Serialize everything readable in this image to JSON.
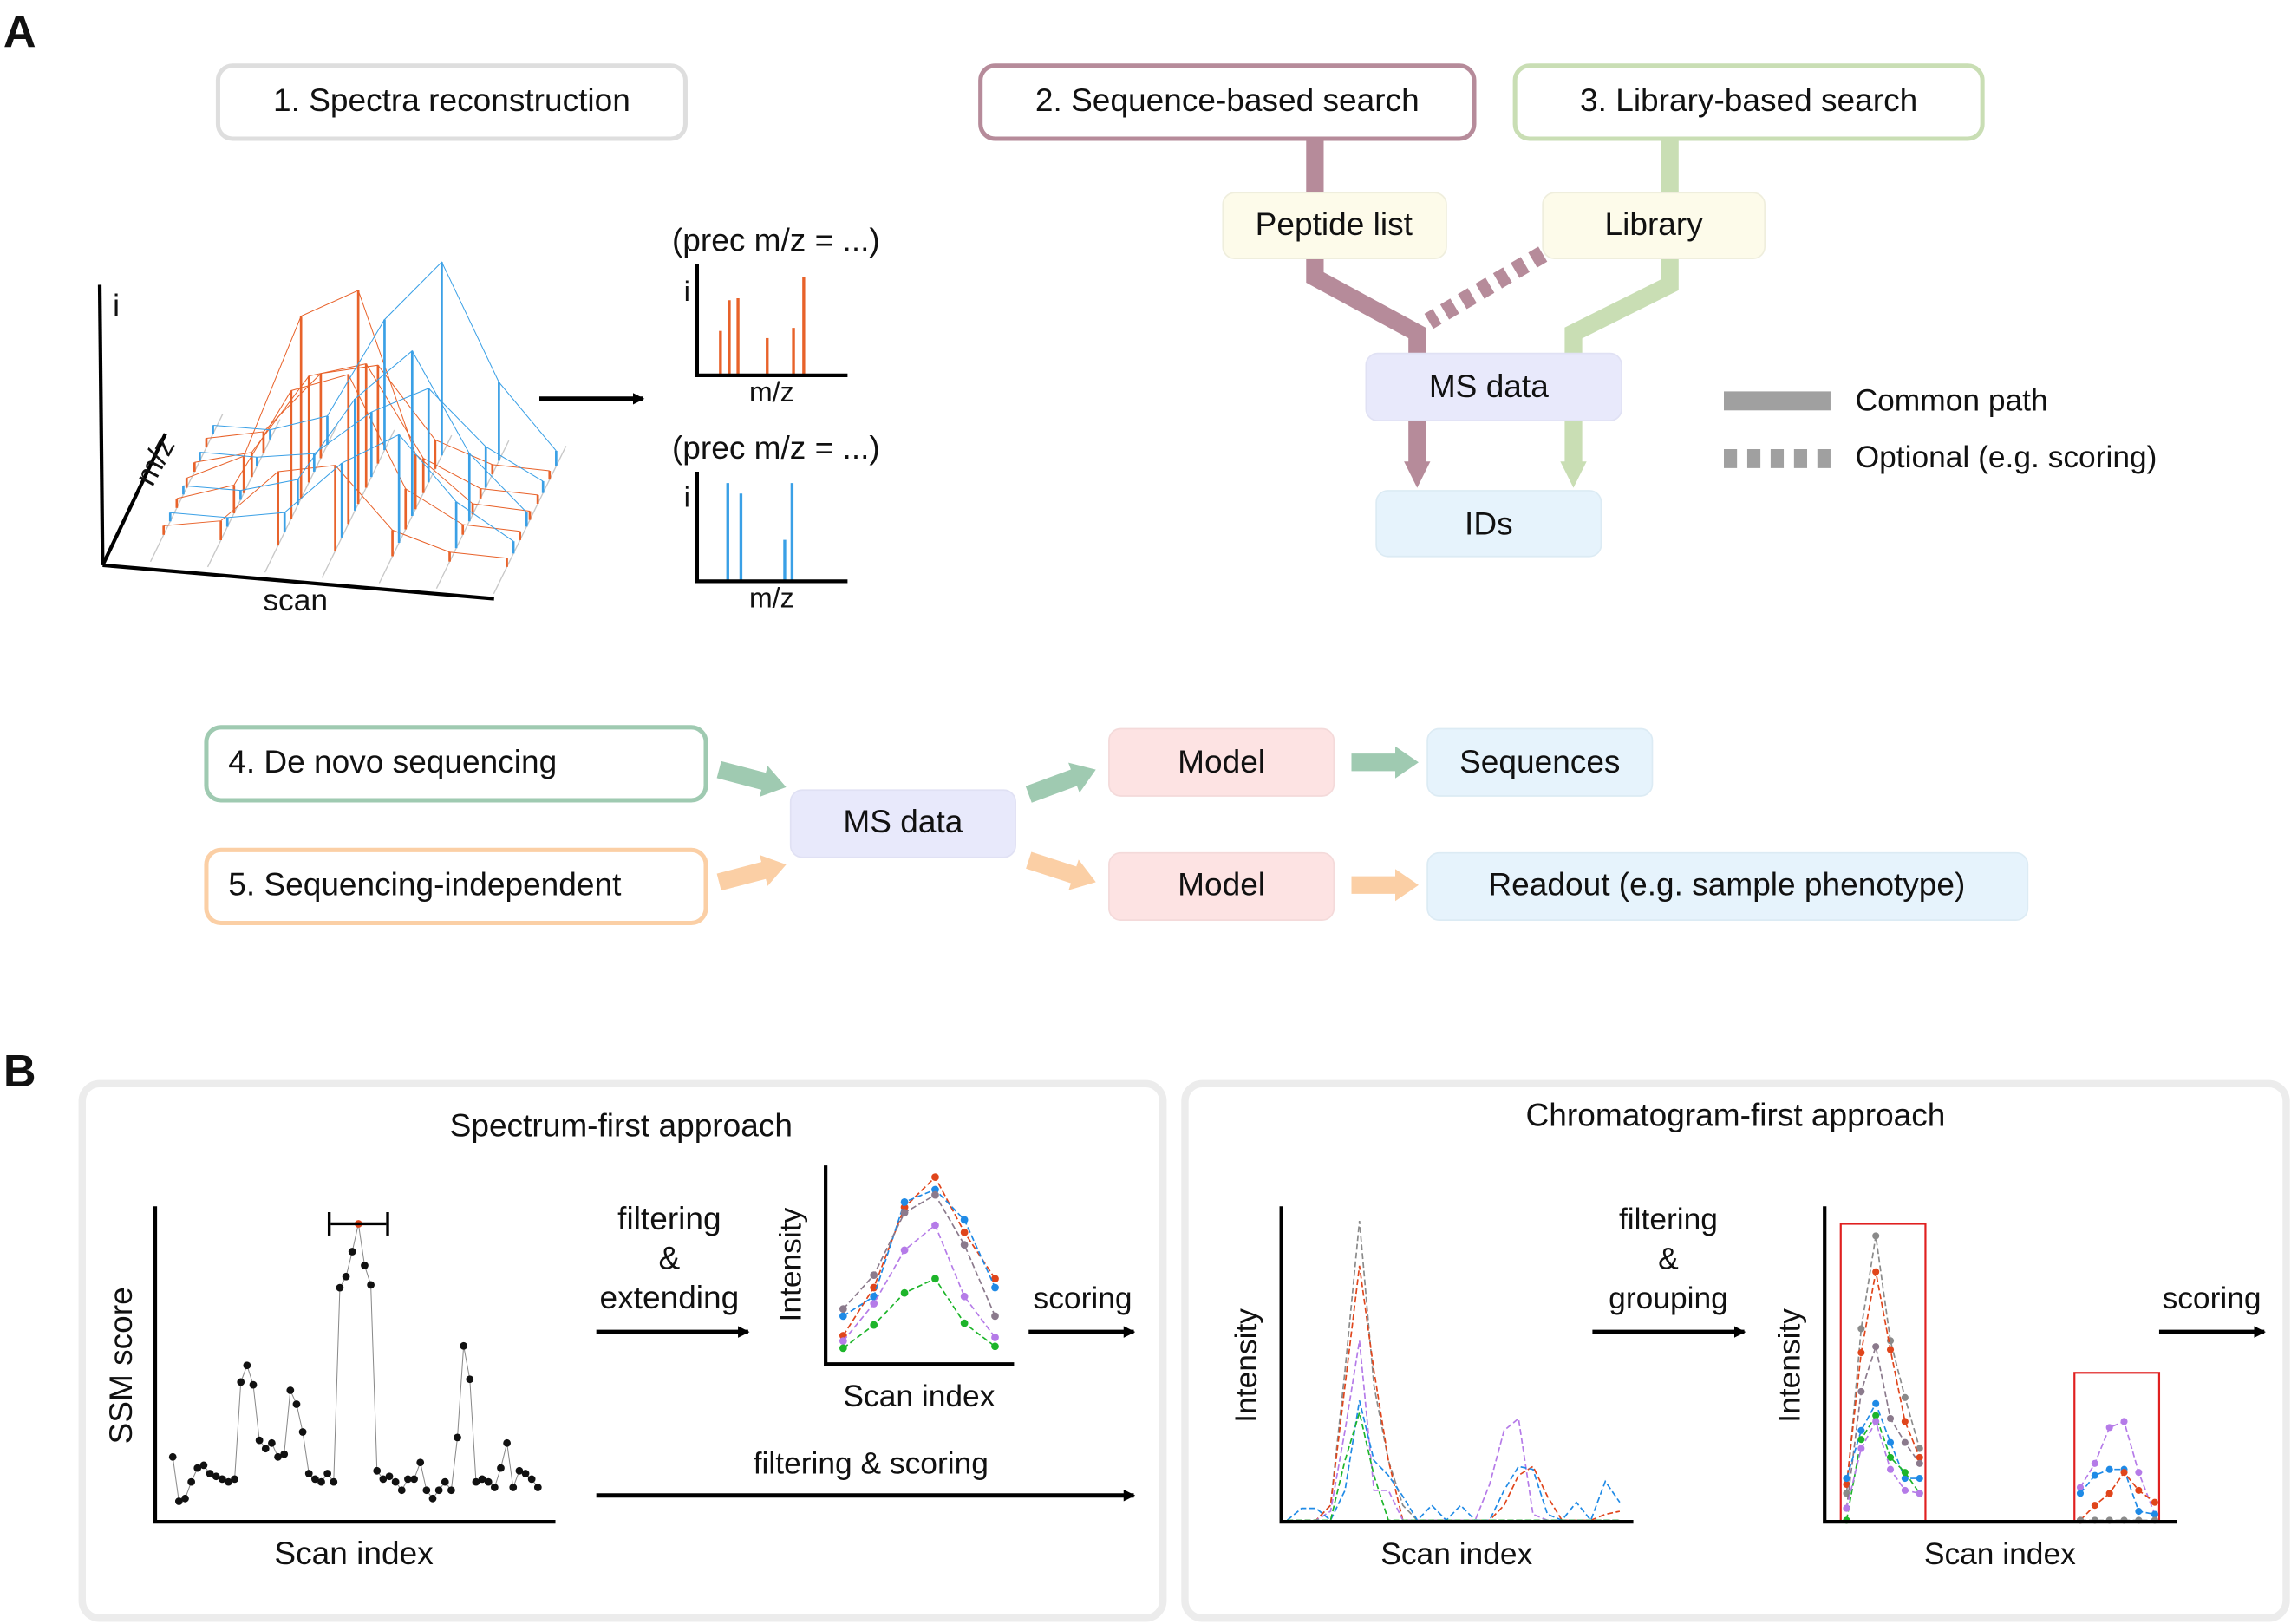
{
  "panel_a": {
    "letter": "A",
    "step1": "1. Spectra reconstruction",
    "step2": "2. Sequence-based search",
    "step3": "3. Library-based search",
    "step4": "4. De novo sequencing",
    "step5": "5. Sequencing-independent",
    "peptide_list": "Peptide list",
    "library": "Library",
    "ms_data": "MS data",
    "ids": "IDs",
    "ms_data_2": "MS data",
    "model_1": "Model",
    "model_2": "Model",
    "sequences": "Sequences",
    "readout": "Readout (e.g. sample phenotype)",
    "legend": {
      "common": "Common path",
      "optional": "Optional (e.g. scoring)"
    },
    "plot3d": {
      "i": "i",
      "mz": "m/z",
      "scan": "scan"
    },
    "spectrum1": {
      "title": "(prec m/z = ...)",
      "ylabel": "i",
      "xlabel": "m/z",
      "peaks": [
        0.42,
        0.72,
        0.74,
        0.35,
        0.45,
        0.95
      ]
    },
    "spectrum2": {
      "title": "(prec m/z = ...)",
      "ylabel": "i",
      "xlabel": "m/z",
      "peaks": [
        0.92,
        0.82,
        0.38,
        0.92
      ]
    },
    "colors": {
      "seq": "#b68b9a",
      "lib": "#c9deb4",
      "denovo": "#9fcab1",
      "indep": "#fbcfa5",
      "orange": "#e8622a",
      "blue": "#3aa0e6",
      "gray": "#a0a0a0"
    }
  },
  "panel_b": {
    "letter": "B",
    "spectrum_first": {
      "title": "Spectrum-first approach",
      "ylabel": "SSM score",
      "xlabel": "Scan index",
      "ssm_scores": [
        0.16,
        0.0,
        0.01,
        0.07,
        0.12,
        0.13,
        0.1,
        0.09,
        0.08,
        0.07,
        0.08,
        0.43,
        0.49,
        0.42,
        0.22,
        0.19,
        0.21,
        0.16,
        0.17,
        0.4,
        0.35,
        0.25,
        0.1,
        0.08,
        0.07,
        0.1,
        0.07,
        0.77,
        0.81,
        0.9,
        1.0,
        0.85,
        0.78,
        0.11,
        0.08,
        0.09,
        0.07,
        0.04,
        0.08,
        0.08,
        0.14,
        0.04,
        0.01,
        0.04,
        0.07,
        0.04,
        0.23,
        0.56,
        0.44,
        0.07,
        0.08,
        0.07,
        0.05,
        0.12,
        0.21,
        0.05,
        0.11,
        0.1,
        0.08,
        0.05
      ],
      "best_index": 30,
      "step1_lines": [
        "filtering",
        "&",
        "extending"
      ],
      "mini_ylabel": "Intensity",
      "mini_xlabel": "Scan index",
      "mini_series": [
        {
          "color": "#e0451b",
          "values": [
            0.11,
            0.38,
            0.83,
            1.0,
            0.69,
            0.43
          ]
        },
        {
          "color": "#1f8ae6",
          "values": [
            0.22,
            0.33,
            0.86,
            0.93,
            0.76,
            0.38
          ]
        },
        {
          "color": "#8b7a8c",
          "values": [
            0.26,
            0.45,
            0.8,
            0.9,
            0.62,
            0.22
          ]
        },
        {
          "color": "#b57be8",
          "values": [
            0.08,
            0.29,
            0.59,
            0.73,
            0.33,
            0.1
          ]
        },
        {
          "color": "#1db52a",
          "values": [
            0.04,
            0.17,
            0.35,
            0.43,
            0.18,
            0.05
          ]
        }
      ],
      "scoring": "scoring",
      "direct": "filtering & scoring"
    },
    "chromatogram_first": {
      "title": "Chromatogram-first approach",
      "ylabel": "Intensity",
      "xlabel": "Scan index",
      "raw_series": [
        {
          "color": "#8a8a8a",
          "values": [
            0,
            0,
            0,
            0.05,
            0.5,
            1.0,
            0.45,
            0.2,
            0.05,
            0,
            0,
            0,
            0,
            0,
            0,
            0,
            0,
            0,
            0,
            0,
            0,
            0,
            0,
            0
          ]
        },
        {
          "color": "#e0451b",
          "values": [
            0,
            0,
            0,
            0.05,
            0.45,
            0.85,
            0.5,
            0.2,
            0,
            0,
            0,
            0,
            0,
            0,
            0,
            0.05,
            0.15,
            0.18,
            0.08,
            0,
            0,
            0,
            0.02,
            0.03
          ]
        },
        {
          "color": "#b57be8",
          "values": [
            0,
            0,
            0,
            0.03,
            0.3,
            0.6,
            0.1,
            0.1,
            0,
            0,
            0,
            0,
            0,
            0,
            0.12,
            0.3,
            0.34,
            0.02,
            0,
            0,
            0,
            0,
            0,
            0
          ]
        },
        {
          "color": "#1f8ae6",
          "values": [
            0,
            0.04,
            0.04,
            0,
            0.1,
            0.4,
            0.2,
            0.15,
            0.08,
            0,
            0.05,
            0,
            0.05,
            0,
            0,
            0.1,
            0.18,
            0.17,
            0.02,
            0,
            0.06,
            0,
            0.13,
            0.06
          ]
        },
        {
          "color": "#1db52a",
          "values": [
            0,
            0,
            0,
            0,
            0.2,
            0.36,
            0.15,
            0,
            0,
            0,
            0,
            0,
            0,
            0,
            0,
            0,
            0,
            0,
            0,
            0,
            0,
            0,
            0,
            0
          ]
        }
      ],
      "step1_lines": [
        "filtering",
        "&",
        "grouping"
      ],
      "grouped_ylabel": "Intensity",
      "grouped_xlabel": "Scan index",
      "group1": [
        {
          "color": "#8a8a8a",
          "values": [
            0.09,
            0.64,
            0.95,
            0.6,
            0.41,
            0.24
          ]
        },
        {
          "color": "#e0451b",
          "values": [
            0.12,
            0.56,
            0.83,
            0.57,
            0.33,
            0.21
          ]
        },
        {
          "color": "#8b7a8c",
          "values": [
            0.04,
            0.43,
            0.58,
            0.34,
            0.26,
            0.19
          ]
        },
        {
          "color": "#1f8ae6",
          "values": [
            0.14,
            0.3,
            0.39,
            0.26,
            0.14,
            0.14
          ]
        },
        {
          "color": "#1db52a",
          "values": [
            0,
            0.27,
            0.35,
            0.21,
            0.16,
            0.09
          ]
        },
        {
          "color": "#b57be8",
          "values": [
            0.04,
            0.24,
            0.33,
            0.17,
            0.1,
            0.09
          ]
        }
      ],
      "group2": [
        {
          "color": "#b57be8",
          "values": [
            0.11,
            0.19,
            0.31,
            0.33,
            0.16,
            0.02
          ]
        },
        {
          "color": "#1f8ae6",
          "values": [
            0.09,
            0.15,
            0.17,
            0.17,
            0.03,
            0.02
          ]
        },
        {
          "color": "#e0451b",
          "values": [
            0,
            0.05,
            0.09,
            0.16,
            0.1,
            0.06
          ]
        },
        {
          "color": "#8a8a8a",
          "values": [
            0,
            0,
            0,
            0,
            0,
            0
          ]
        }
      ],
      "scoring": "scoring"
    }
  }
}
